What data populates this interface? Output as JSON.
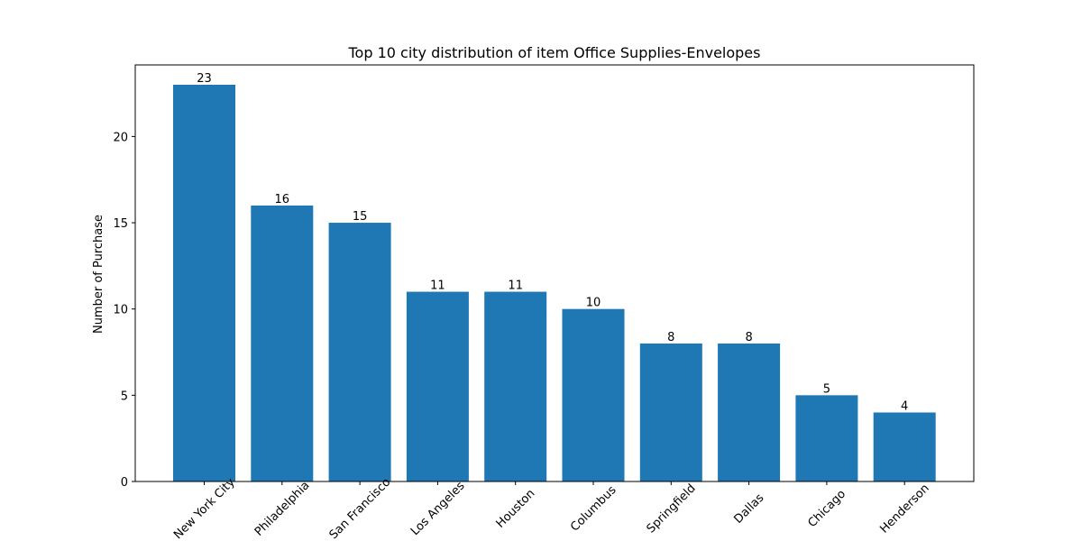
{
  "chart_data": {
    "type": "bar",
    "title": "Top 10 city distribution of item Office Supplies-Envelopes",
    "xlabel": "",
    "ylabel": "Number of Purchase",
    "categories": [
      "New York City",
      "Philadelphia",
      "San Francisco",
      "Los Angeles",
      "Houston",
      "Columbus",
      "Springfield",
      "Dallas",
      "Chicago",
      "Henderson"
    ],
    "values": [
      23,
      16,
      15,
      11,
      11,
      10,
      8,
      8,
      5,
      4
    ],
    "ylim": [
      0,
      24.15
    ],
    "yticks": [
      0,
      5,
      10,
      15,
      20
    ],
    "bar_color": "#1f77b4",
    "grid": false,
    "x_tick_rotation": 45
  }
}
